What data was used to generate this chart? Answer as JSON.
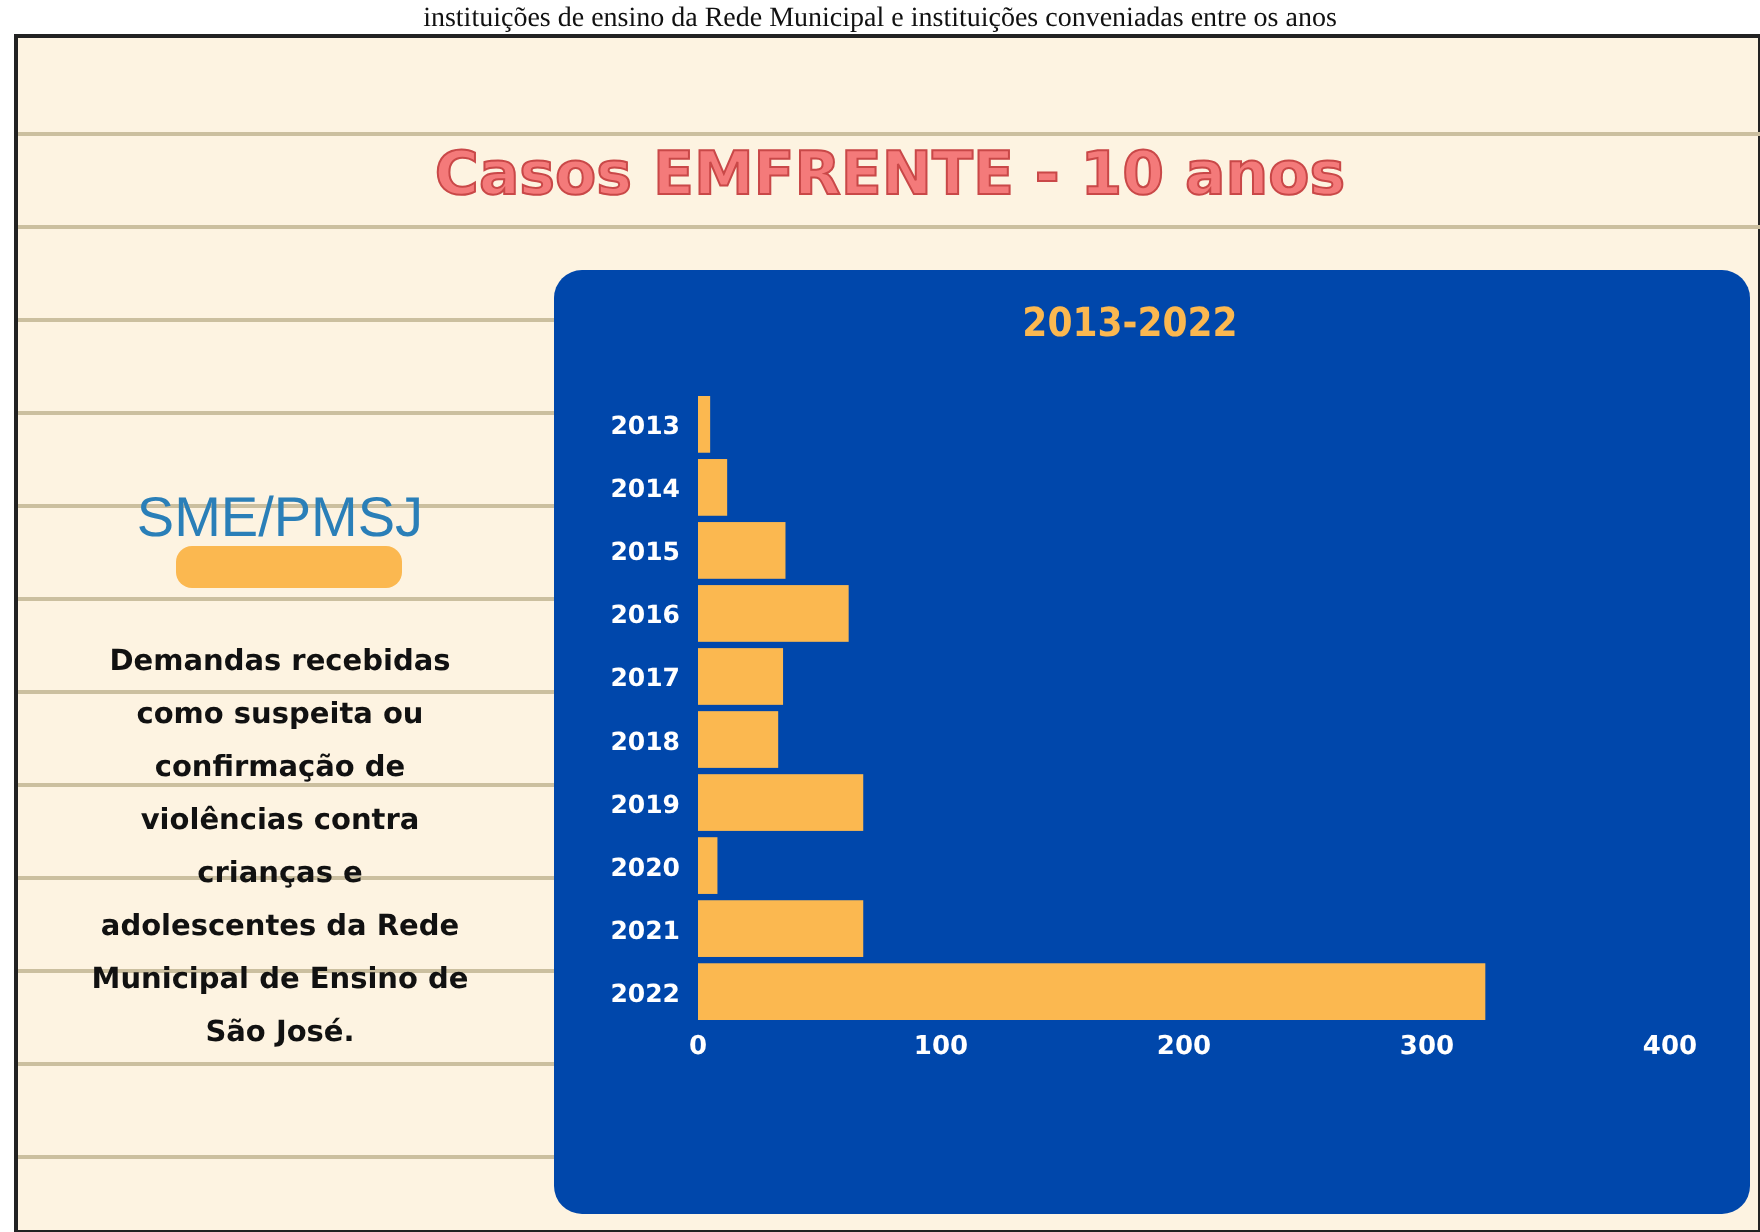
{
  "chart_data": {
    "type": "bar",
    "orientation": "horizontal",
    "title": "Casos EMFRENTE - 10 anos",
    "subtitle": "2013-2022",
    "annotations": [
      "instituições de ensino da Rede Municipal e instituições conveniadas entre os anos",
      "SME/PMSJ",
      "Demandas recebidas como suspeita ou confirmação de violências contra crianças e adolescentes da Rede Municipal de Ensino de São José."
    ],
    "categories": [
      "2013",
      "2014",
      "2015",
      "2016",
      "2017",
      "2018",
      "2019",
      "2020",
      "2021",
      "2022"
    ],
    "values": [
      5,
      12,
      36,
      62,
      35,
      33,
      68,
      8,
      68,
      324
    ],
    "color": "#fbb850",
    "xlim": [
      0,
      400
    ],
    "xticks": [
      0,
      100,
      200,
      300,
      400
    ],
    "grid": false
  }
}
